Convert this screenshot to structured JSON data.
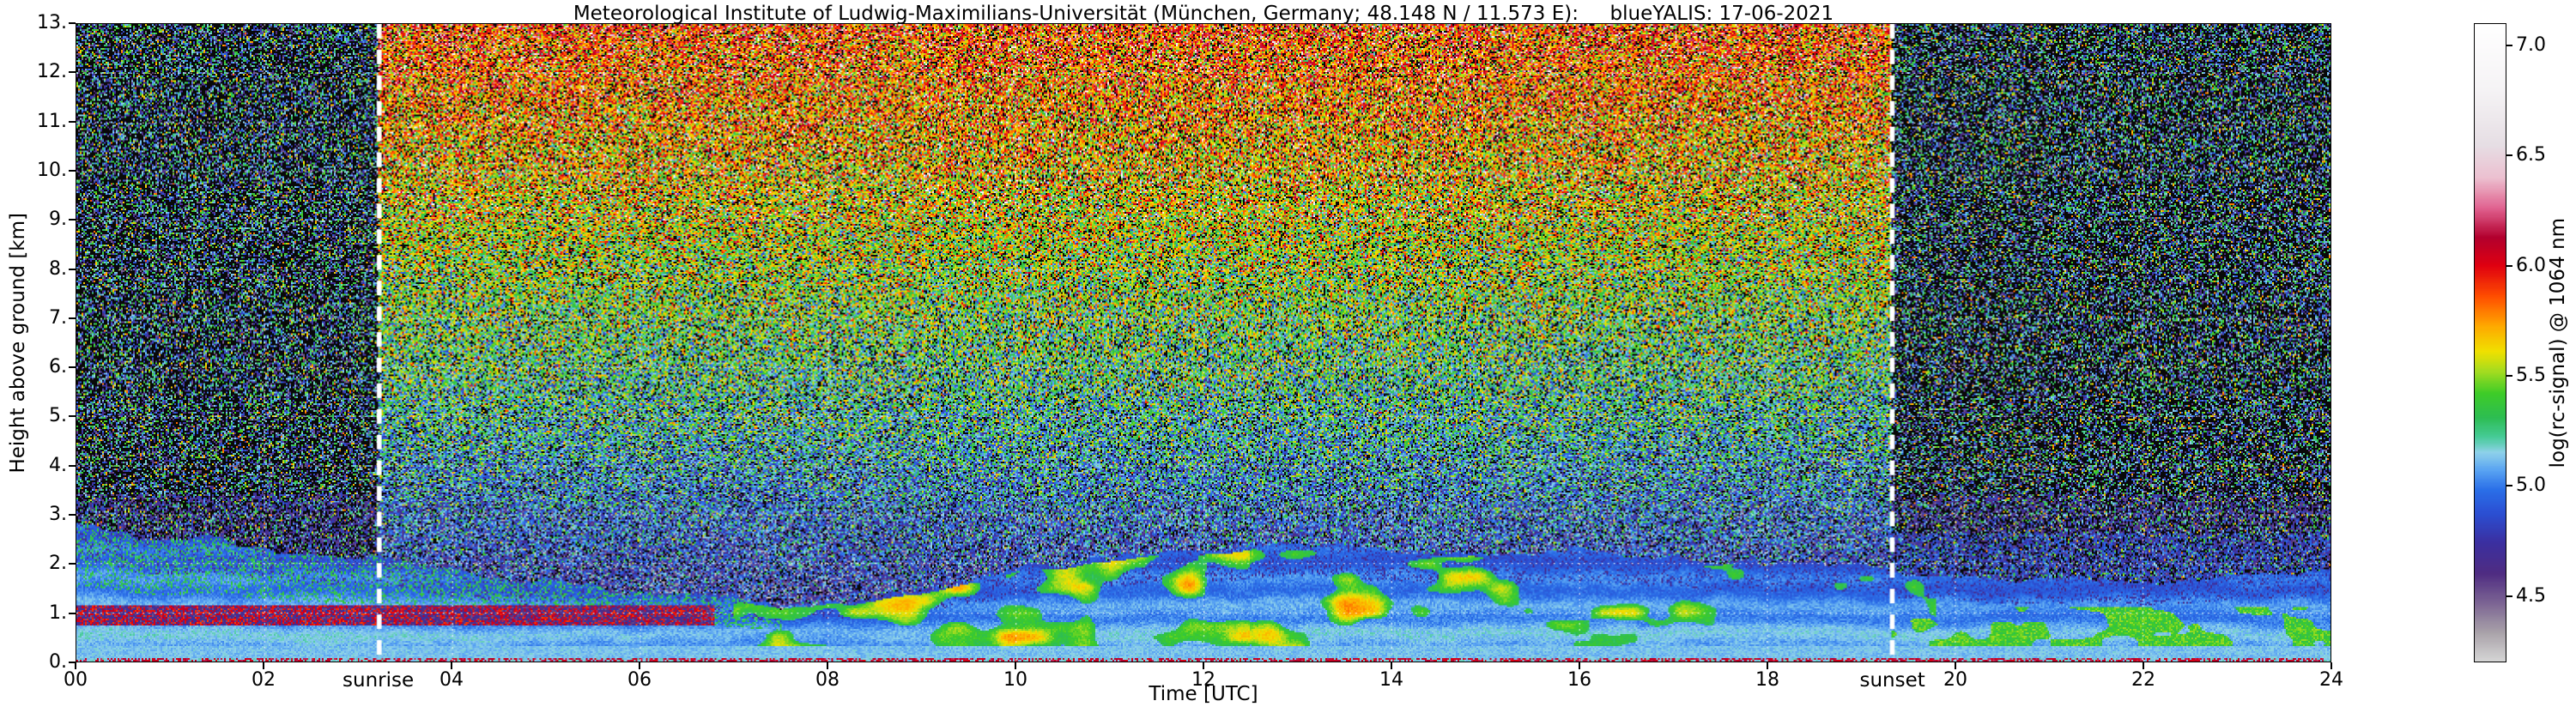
{
  "figure": {
    "title": "Meteorological Institute of Ludwig-Maximilians-Universität (München, Germany; 48.148 N / 11.573 E):     blueYALIS: 17-06-2021"
  },
  "axes": {
    "x": {
      "label": "Time [UTC]",
      "min": 0,
      "max": 24,
      "tick_step_hours": 2,
      "ticks": [
        "00",
        "02",
        "04",
        "06",
        "08",
        "10",
        "12",
        "14",
        "16",
        "18",
        "20",
        "22",
        "24"
      ]
    },
    "y": {
      "label": "Height above ground [km]",
      "min": 0,
      "max": 13,
      "ticks": [
        "0.",
        "1.",
        "2.",
        "3.",
        "4.",
        "5.",
        "6.",
        "7.",
        "8.",
        "9.",
        "10.",
        "11.",
        "12.",
        "13."
      ]
    }
  },
  "annotations": {
    "sunrise": {
      "label": "sunrise",
      "time_utc": 3.22
    },
    "sunset": {
      "label": "sunset",
      "time_utc": 19.33
    }
  },
  "colorbar": {
    "label": "log(rc-signal) @ 1064 nm",
    "vmin": 4.2,
    "vmax": 7.1,
    "ticks": [
      "4.5",
      "5.0",
      "5.5",
      "6.0",
      "6.5",
      "7.0"
    ],
    "stops": [
      [
        4.2,
        "#d6d6d6"
      ],
      [
        4.33,
        "#a9a2a9"
      ],
      [
        4.46,
        "#7d6694"
      ],
      [
        4.6,
        "#4f2c82"
      ],
      [
        4.74,
        "#3b2fa0"
      ],
      [
        4.87,
        "#2b4ed2"
      ],
      [
        4.98,
        "#2a6fe8"
      ],
      [
        5.07,
        "#5aa4f2"
      ],
      [
        5.15,
        "#8fd2ea"
      ],
      [
        5.22,
        "#46cb97"
      ],
      [
        5.31,
        "#2dbd52"
      ],
      [
        5.42,
        "#3ecc28"
      ],
      [
        5.52,
        "#a5dc20"
      ],
      [
        5.61,
        "#f0e000"
      ],
      [
        5.73,
        "#ffa600"
      ],
      [
        5.86,
        "#ff4e00"
      ],
      [
        6.0,
        "#e00010"
      ],
      [
        6.13,
        "#b2002e"
      ],
      [
        6.26,
        "#e0608e"
      ],
      [
        6.4,
        "#ecc0d0"
      ],
      [
        6.55,
        "#e6dee4"
      ],
      [
        6.8,
        "#f5f3f5"
      ],
      [
        7.1,
        "#ffffff"
      ]
    ]
  },
  "chart_data": {
    "type": "heatmap",
    "title": "Meteorological Institute of Ludwig-Maximilians-Universität (München, Germany; 48.148 N / 11.573 E): blueYALIS: 17-06-2021",
    "instrument": "blueYALIS",
    "date": "17-06-2021",
    "site": "München, Germany; 48.148 N / 11.573 E",
    "wavelength_nm": 1064,
    "xlabel": "Time [UTC]",
    "ylabel": "Height above ground [km]",
    "x_range": [
      0,
      24
    ],
    "y_range": [
      0,
      13
    ],
    "x_ticks": [
      0,
      2,
      4,
      6,
      8,
      10,
      12,
      14,
      16,
      18,
      20,
      22,
      24
    ],
    "y_ticks": [
      0,
      1,
      2,
      3,
      4,
      5,
      6,
      7,
      8,
      9,
      10,
      11,
      12,
      13
    ],
    "color_scale": {
      "label": "log(rc-signal) @ 1064 nm",
      "range": [
        4.2,
        7.1
      ],
      "ticks": [
        4.5,
        5.0,
        5.5,
        6.0,
        6.5,
        7.0
      ]
    },
    "annotations": [
      {
        "label": "sunrise",
        "x_utc": 3.22
      },
      {
        "label": "sunset",
        "x_utc": 19.33
      }
    ],
    "grid": {
      "horizontal_km": [
        1,
        2,
        3,
        4,
        5,
        6,
        7,
        8,
        9,
        10,
        11,
        12
      ],
      "vertical_hours": [
        2,
        4,
        6,
        8,
        10,
        12,
        14,
        16,
        18,
        20,
        22
      ],
      "style": "white dotted"
    },
    "features": {
      "night_background": "dark speckle noise with green and purple dots before sunrise and after sunset",
      "day_background": "bright solar background noise: brown-orange speckle at high altitude fading to green then dark green/purple below ~5 km",
      "boundary_layer_top_km": [
        [
          0,
          2.75
        ],
        [
          1.5,
          2.5
        ],
        [
          3,
          2.15
        ],
        [
          4.5,
          1.75
        ],
        [
          6,
          1.4
        ],
        [
          7.5,
          1.15
        ],
        [
          8.5,
          1.3
        ],
        [
          9.5,
          1.7
        ],
        [
          10.5,
          2.0
        ],
        [
          11.5,
          2.2
        ],
        [
          13,
          2.3
        ],
        [
          15,
          2.25
        ],
        [
          17,
          2.15
        ],
        [
          18.5,
          2.05
        ],
        [
          19.5,
          1.85
        ],
        [
          21,
          1.6
        ],
        [
          22.5,
          1.7
        ],
        [
          24,
          1.85
        ]
      ],
      "aerosol_layer": "strong blue/light-blue aerosol signal below ~2.5 km all day; descending residual layer 00-07 UTC; convective growth with green cloud/aerosol patches 08-19 UTC",
      "red_band": "red/magenta band near 1 km from 00 to ~07 UTC and a thin red near-range strip at the very bottom"
    }
  }
}
